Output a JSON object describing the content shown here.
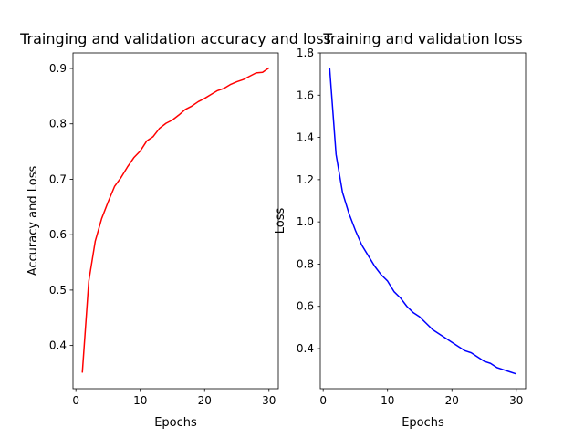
{
  "chart_data": [
    {
      "type": "line",
      "title": "Trainging and validation accuracy and loss",
      "xlabel": "Epochs",
      "ylabel": "Accuracy and Loss",
      "xlim": [
        -0.45,
        31.45
      ],
      "ylim": [
        0.322,
        0.928
      ],
      "xticks": [
        0,
        10,
        20,
        30
      ],
      "yticks": [
        0.4,
        0.5,
        0.6,
        0.7,
        0.8,
        0.9
      ],
      "grid": false,
      "series": [
        {
          "color": "#ff0000",
          "x": [
            1,
            2,
            3,
            4,
            5,
            6,
            7,
            8,
            9,
            10,
            11,
            12,
            13,
            14,
            15,
            16,
            17,
            18,
            19,
            20,
            21,
            22,
            23,
            24,
            25,
            26,
            27,
            28,
            29,
            30
          ],
          "y": [
            0.351,
            0.516,
            0.588,
            0.629,
            0.659,
            0.687,
            0.703,
            0.722,
            0.739,
            0.751,
            0.769,
            0.777,
            0.792,
            0.801,
            0.807,
            0.816,
            0.826,
            0.832,
            0.84,
            0.846,
            0.853,
            0.86,
            0.864,
            0.871,
            0.876,
            0.88,
            0.886,
            0.892,
            0.893,
            0.901
          ]
        }
      ]
    },
    {
      "type": "line",
      "title": "Training and validation loss",
      "xlabel": "Epochs",
      "ylabel": "Loss",
      "xlim": [
        -0.45,
        31.45
      ],
      "ylim": [
        0.21,
        1.8
      ],
      "xticks": [
        0,
        10,
        20,
        30
      ],
      "yticks": [
        0.4,
        0.6,
        0.8,
        1.0,
        1.2,
        1.4,
        1.6,
        1.8
      ],
      "grid": false,
      "series": [
        {
          "color": "#0000ff",
          "x": [
            1,
            2,
            3,
            4,
            5,
            6,
            7,
            8,
            9,
            10,
            11,
            12,
            13,
            14,
            15,
            16,
            17,
            18,
            19,
            20,
            21,
            22,
            23,
            24,
            25,
            26,
            27,
            28,
            29,
            30
          ],
          "y": [
            1.73,
            1.32,
            1.14,
            1.04,
            0.96,
            0.89,
            0.84,
            0.79,
            0.75,
            0.72,
            0.67,
            0.64,
            0.6,
            0.57,
            0.55,
            0.52,
            0.49,
            0.47,
            0.45,
            0.43,
            0.41,
            0.39,
            0.38,
            0.36,
            0.34,
            0.33,
            0.31,
            0.3,
            0.29,
            0.28
          ]
        }
      ]
    }
  ]
}
